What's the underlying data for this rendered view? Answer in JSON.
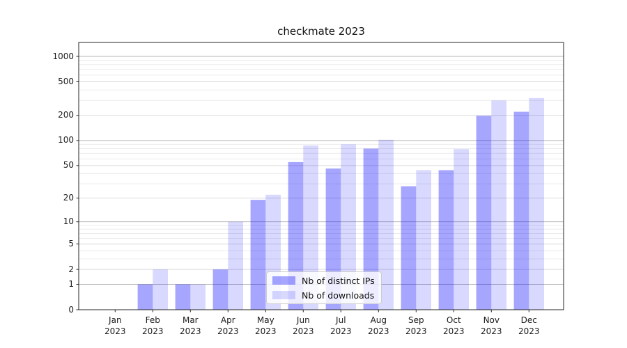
{
  "chart": {
    "title": "checkmate 2023"
  },
  "chart_data": {
    "type": "bar",
    "title": "checkmate 2023",
    "categories": [
      "Jan 2023",
      "Feb 2023",
      "Mar 2023",
      "Apr 2023",
      "May 2023",
      "Jun 2023",
      "Jul 2023",
      "Aug 2023",
      "Sep 2023",
      "Oct 2023",
      "Nov 2023",
      "Dec 2023"
    ],
    "series": [
      {
        "name": "Nb of distinct IPs",
        "color": "rgba(0,0,255,0.35)",
        "values": [
          0,
          1,
          1,
          2,
          19,
          55,
          46,
          80,
          28,
          44,
          197,
          220
        ]
      },
      {
        "name": "Nb of downloads",
        "color": "rgba(0,0,255,0.15)",
        "values": [
          0,
          2,
          1,
          10,
          22,
          87,
          90,
          102,
          44,
          79,
          300,
          320
        ]
      }
    ],
    "xlabel": "",
    "ylabel": "",
    "yscale": "log1p",
    "yticks": [
      0,
      1,
      2,
      5,
      10,
      20,
      50,
      100,
      200,
      500,
      1000
    ],
    "ylim": [
      0,
      1460
    ],
    "grid": true,
    "legend_position": "lower center inside"
  }
}
